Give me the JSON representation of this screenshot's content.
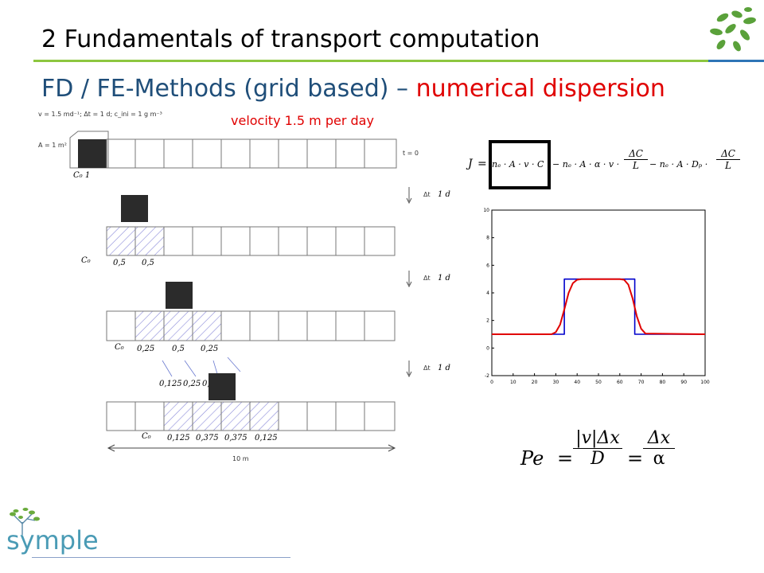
{
  "header": {
    "title": "2  Fundamentals of transport computation",
    "subtitle_main": "FD / FE-Methods (grid based) – ",
    "subtitle_highlight": "numerical dispersion",
    "velocity_note": "velocity 1.5 m per day"
  },
  "scan": {
    "params": "v = 1.5 md⁻¹; Δt = 1 d; c_ini = 1 g m⁻³",
    "area": "A = 1 m²",
    "t0": "t = 0",
    "dt_labels": [
      "Δt",
      "Δt",
      "Δt"
    ],
    "dt_values": [
      "1 d",
      "1 d",
      "1 d"
    ],
    "row2_values": [
      "0,5",
      "0,5"
    ],
    "row3_values": [
      "0,25",
      "0,5",
      "0,25"
    ],
    "row4_pre_values": [
      "0,125",
      "0,25",
      "0,12"
    ],
    "row4_values": [
      "0,125",
      "0,375",
      "0,375",
      "0,125"
    ],
    "c_labels": [
      "C₀ 1",
      "C₀",
      "C₀",
      "C₀"
    ],
    "length_label": "10 m"
  },
  "equations": {
    "flux": {
      "J": "J",
      "term1": "nₑ · A · v · C",
      "term2": "− nₑ · A · α · v ·",
      "term3": "− nₑ · A · Dₚ ·",
      "numerator": "ΔC",
      "denominator": "L"
    },
    "peclet": {
      "lhs": "Pe",
      "num1": "|v|Δx",
      "den1": "D",
      "num2": "Δx",
      "den2": "α"
    }
  },
  "chart_data": {
    "type": "line",
    "title": "",
    "xlabel": "",
    "ylabel": "",
    "xlim": [
      0,
      100
    ],
    "ylim": [
      -2,
      10
    ],
    "xticks": [
      0,
      10,
      20,
      30,
      40,
      50,
      60,
      70,
      80,
      90,
      100
    ],
    "yticks": [
      -2,
      0,
      2,
      4,
      6,
      8,
      10
    ],
    "series": [
      {
        "color": "#0000cc",
        "x": [
          0,
          34,
          34,
          67,
          67,
          100
        ],
        "y": [
          1,
          1,
          5,
          5,
          1,
          1
        ]
      },
      {
        "color": "#e00000",
        "x": [
          0,
          28,
          30,
          32,
          34,
          36,
          38,
          40,
          42,
          60,
          62,
          64,
          66,
          68,
          70,
          72,
          100
        ],
        "y": [
          1,
          1,
          1.15,
          1.7,
          2.8,
          4.0,
          4.7,
          4.95,
          5,
          5,
          4.95,
          4.6,
          3.6,
          2.3,
          1.4,
          1.05,
          1
        ]
      }
    ]
  },
  "logo": {
    "text": "symple"
  },
  "colors": {
    "title_line": "#8dc63f",
    "title_line_right": "#2e75b6",
    "subtitle": "#1f4e79",
    "highlight": "#e00000"
  }
}
